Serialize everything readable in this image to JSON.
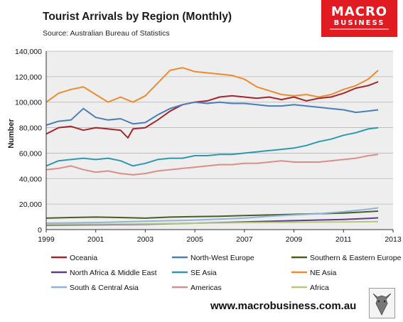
{
  "header": {
    "title": "Tourist Arrivals by Region (Monthly)",
    "source": "Source: Australian Bureau of Statistics"
  },
  "logo": {
    "main": "MACRO",
    "sub": "BUSINESS"
  },
  "footer": {
    "url": "www.macrobusiness.com.au"
  },
  "colors": {
    "Oceania": "#a3262c",
    "North-West Europe": "#4a7ebb",
    "Southern & Eastern Europe": "#4b5e21",
    "North Africa & Middle East": "#5b3f89",
    "SE Asia": "#2e99ad",
    "NE Asia": "#ed8b2e",
    "South & Central Asia": "#8eb3e0",
    "Americas": "#d98e8c",
    "Africa": "#b5c97a",
    "plot_bg": "#eeeeee",
    "grid": "#b5b5b5",
    "brand": "#e01b22"
  },
  "chart_data": {
    "type": "line",
    "title": "Tourist Arrivals by Region (Monthly)",
    "xlabel": "",
    "ylabel": "Number",
    "xlim": [
      1999,
      2013
    ],
    "ylim": [
      0,
      140000
    ],
    "x_ticks": [
      "1999",
      "2001",
      "2003",
      "2005",
      "2007",
      "2009",
      "2011",
      "2013"
    ],
    "y_ticks": [
      "0",
      "20,000",
      "40,000",
      "60,000",
      "80,000",
      "100,000",
      "120,000",
      "140,000"
    ],
    "grid": true,
    "legend_position": "bottom",
    "series": [
      {
        "name": "Oceania",
        "x": [
          1999,
          1999.5,
          2000,
          2000.5,
          2001,
          2001.5,
          2002,
          2002.3,
          2002.5,
          2003,
          2003.5,
          2004,
          2004.5,
          2005,
          2005.5,
          2006,
          2006.5,
          2007,
          2007.5,
          2008,
          2008.5,
          2009,
          2009.5,
          2010,
          2010.5,
          2011,
          2011.5,
          2012,
          2012.4
        ],
        "values": [
          75000,
          80000,
          81000,
          78000,
          80000,
          79000,
          78000,
          72000,
          79000,
          80000,
          86000,
          93000,
          98000,
          100000,
          101000,
          104000,
          105000,
          104000,
          103000,
          104000,
          102000,
          104000,
          101000,
          103000,
          104000,
          107000,
          111000,
          113000,
          116000
        ]
      },
      {
        "name": "North-West Europe",
        "x": [
          1999,
          1999.5,
          2000,
          2000.5,
          2001,
          2001.5,
          2002,
          2002.5,
          2003,
          2003.5,
          2004,
          2004.5,
          2005,
          2005.5,
          2006,
          2006.5,
          2007,
          2007.5,
          2008,
          2008.5,
          2009,
          2009.5,
          2010,
          2010.5,
          2011,
          2011.5,
          2012,
          2012.4
        ],
        "values": [
          82000,
          85000,
          86000,
          95000,
          88000,
          86000,
          87000,
          83000,
          84000,
          90000,
          95000,
          98000,
          100000,
          99000,
          100000,
          99000,
          99000,
          98000,
          97000,
          97000,
          98000,
          97000,
          96000,
          95000,
          94000,
          92000,
          93000,
          94000
        ]
      },
      {
        "name": "Southern & Eastern Europe",
        "x": [
          1999,
          2000,
          2001,
          2002,
          2003,
          2004,
          2005,
          2006,
          2007,
          2008,
          2009,
          2010,
          2011,
          2012,
          2012.4
        ],
        "values": [
          9000,
          9500,
          9800,
          9500,
          9000,
          9800,
          10200,
          10500,
          11000,
          11500,
          12000,
          12500,
          13000,
          14000,
          14500
        ]
      },
      {
        "name": "North Africa & Middle East",
        "x": [
          1999,
          2001,
          2003,
          2005,
          2007,
          2009,
          2011,
          2012,
          2012.4
        ],
        "values": [
          3500,
          3800,
          4200,
          5000,
          6000,
          7000,
          8000,
          8800,
          9200
        ]
      },
      {
        "name": "SE Asia",
        "x": [
          1999,
          1999.5,
          2000,
          2000.5,
          2001,
          2001.5,
          2002,
          2002.5,
          2003,
          2003.5,
          2004,
          2004.5,
          2005,
          2005.5,
          2006,
          2006.5,
          2007,
          2007.5,
          2008,
          2008.5,
          2009,
          2009.5,
          2010,
          2010.5,
          2011,
          2011.5,
          2012,
          2012.4
        ],
        "values": [
          50000,
          54000,
          55000,
          56000,
          55000,
          56000,
          54000,
          50000,
          52000,
          55000,
          56000,
          56000,
          58000,
          58000,
          59000,
          59000,
          60000,
          61000,
          62000,
          63000,
          64000,
          66000,
          69000,
          71000,
          74000,
          76000,
          79000,
          80000
        ]
      },
      {
        "name": "NE Asia",
        "x": [
          1999,
          1999.5,
          2000,
          2000.5,
          2001,
          2001.5,
          2002,
          2002.5,
          2003,
          2003.5,
          2004,
          2004.5,
          2005,
          2005.5,
          2006,
          2006.5,
          2007,
          2007.5,
          2008,
          2008.5,
          2009,
          2009.5,
          2010,
          2010.5,
          2011,
          2011.5,
          2012,
          2012.4
        ],
        "values": [
          100000,
          107000,
          110000,
          112000,
          106000,
          100000,
          104000,
          100000,
          105000,
          115000,
          125000,
          127000,
          124000,
          123000,
          122000,
          121000,
          118000,
          112000,
          109000,
          106000,
          105000,
          106000,
          104000,
          106000,
          110000,
          113000,
          118000,
          125000
        ]
      },
      {
        "name": "South & Central Asia",
        "x": [
          1999,
          2001,
          2003,
          2005,
          2007,
          2008,
          2009,
          2010,
          2011,
          2012,
          2012.4
        ],
        "values": [
          5000,
          5500,
          6500,
          7500,
          9000,
          10500,
          11500,
          12500,
          14000,
          16000,
          17000
        ]
      },
      {
        "name": "Americas",
        "x": [
          1999,
          1999.5,
          2000,
          2000.5,
          2001,
          2001.5,
          2002,
          2002.5,
          2003,
          2003.5,
          2004,
          2004.5,
          2005,
          2005.5,
          2006,
          2006.5,
          2007,
          2007.5,
          2008,
          2008.5,
          2009,
          2009.5,
          2010,
          2010.5,
          2011,
          2011.5,
          2012,
          2012.4
        ],
        "values": [
          47000,
          48000,
          50000,
          47000,
          45000,
          46000,
          44000,
          43000,
          44000,
          46000,
          47000,
          48000,
          49000,
          50000,
          51000,
          51000,
          52000,
          52000,
          53000,
          54000,
          53000,
          53000,
          53000,
          54000,
          55000,
          56000,
          58000,
          59000
        ]
      },
      {
        "name": "Africa",
        "x": [
          1999,
          2001,
          2003,
          2005,
          2007,
          2009,
          2011,
          2012,
          2012.4
        ],
        "values": [
          4000,
          4200,
          4500,
          5000,
          5500,
          5800,
          6000,
          6200,
          6300
        ]
      }
    ]
  }
}
